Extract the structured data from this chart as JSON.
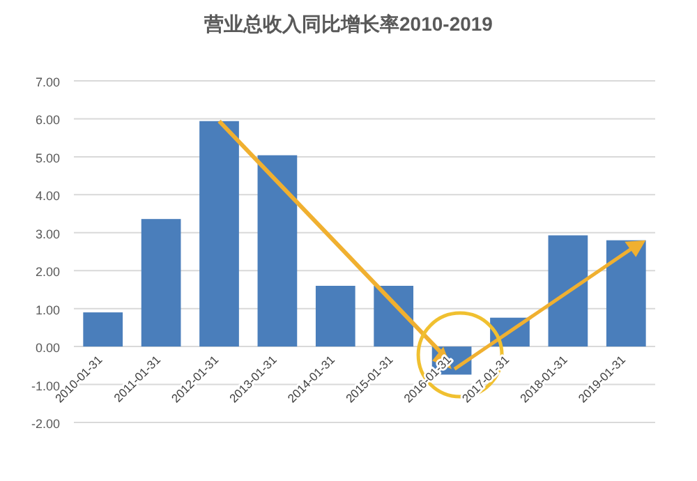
{
  "chart_data": {
    "type": "bar",
    "title": "营业总收入同比增长率2010-2019",
    "categories": [
      "2010-01-31",
      "2011-01-31",
      "2012-01-31",
      "2013-01-31",
      "2014-01-31",
      "2015-01-31",
      "2016-01-31",
      "2017-01-31",
      "2018-01-31",
      "2019-01-31"
    ],
    "values": [
      0.9,
      3.36,
      5.94,
      5.04,
      1.6,
      1.6,
      -0.74,
      0.76,
      2.93,
      2.8
    ],
    "color": "#4a7ebb",
    "ylim": [
      -2,
      7
    ],
    "yticks": [
      {
        "value": -2,
        "label": "-2.00"
      },
      {
        "value": -1,
        "label": "-1.00"
      },
      {
        "value": 0,
        "label": "0.00"
      },
      {
        "value": 1,
        "label": "1.00"
      },
      {
        "value": 2,
        "label": "2.00"
      },
      {
        "value": 3,
        "label": "3.00"
      },
      {
        "value": 4,
        "label": "4.00"
      },
      {
        "value": 5,
        "label": "5.00"
      },
      {
        "value": 6,
        "label": "6.00"
      },
      {
        "value": 7,
        "label": "7.00"
      }
    ],
    "grid": "y"
  }
}
